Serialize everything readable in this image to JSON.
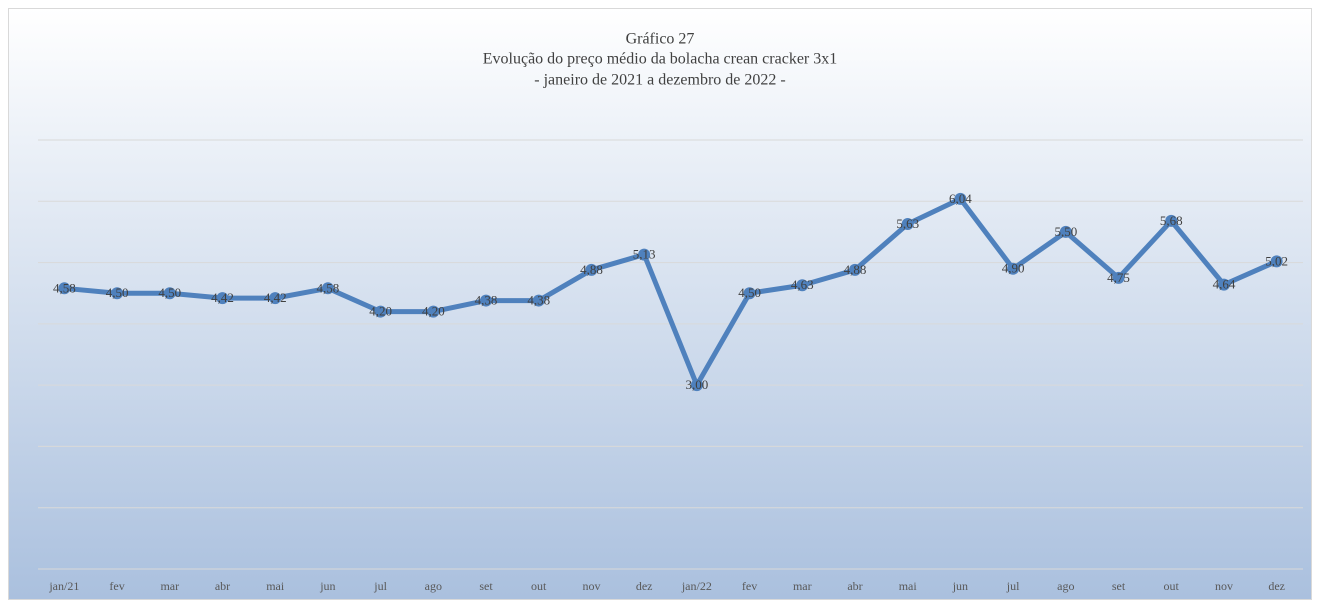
{
  "chart_data": {
    "type": "line",
    "title": "Gráfico 27",
    "subtitle": [
      "Evolução do preço médio da bolacha crean cracker 3x1",
      "- janeiro de 2021 a dezembro de 2022 -"
    ],
    "categories": [
      "jan/21",
      "fev",
      "mar",
      "abr",
      "mai",
      "jun",
      "jul",
      "ago",
      "set",
      "out",
      "nov",
      "dez",
      "jan/22",
      "fev",
      "mar",
      "abr",
      "mai",
      "jun",
      "jul",
      "ago",
      "set",
      "out",
      "nov",
      "dez"
    ],
    "values": [
      4.58,
      4.5,
      4.5,
      4.42,
      4.42,
      4.58,
      4.2,
      4.2,
      4.38,
      4.38,
      4.88,
      5.13,
      3.0,
      4.5,
      4.63,
      4.88,
      5.63,
      6.04,
      4.9,
      5.5,
      4.75,
      5.68,
      4.64,
      5.02
    ],
    "value_labels": [
      "4,58",
      "4,50",
      "4,50",
      "4,42",
      "4,42",
      "4,58",
      "4,20",
      "4,20",
      "4,38",
      "4,38",
      "4,88",
      "5,13",
      "3,00",
      "4,50",
      "4,63",
      "4,88",
      "5,63",
      "6,04",
      "4,90",
      "5,50",
      "4,75",
      "5,68",
      "4,64",
      "5,02"
    ],
    "color": "#4f81bd",
    "ylim": [
      0,
      7
    ],
    "yticks": [
      0,
      1,
      2,
      3,
      4,
      5,
      6,
      7
    ],
    "grid": true
  }
}
